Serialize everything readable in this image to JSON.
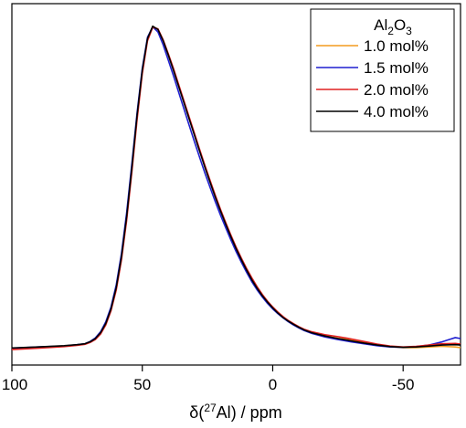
{
  "chart_data": {
    "type": "line",
    "title": "",
    "xlabel": {
      "prefix": "δ(",
      "sup": "27",
      "element": "Al",
      "suffix": ") / ppm"
    },
    "ylabel": "",
    "xlim": [
      100,
      -72
    ],
    "x_reversed": true,
    "ylim": [
      -0.05,
      1.07
    ],
    "x_ticks": [
      100,
      50,
      0,
      -50
    ],
    "x_tick_labels": [
      "100",
      "50",
      "0",
      "-50"
    ],
    "y_ticks_shown": false,
    "grid": false,
    "legend": {
      "position": "top-right",
      "title": {
        "pre": "Al",
        "sub1": "2",
        "mid": "O",
        "sub2": "3"
      }
    },
    "series": [
      {
        "name": "1.0 mol%",
        "color": "#f39c1f",
        "x": [
          100,
          90,
          80,
          75,
          72,
          70,
          68,
          66,
          64,
          62,
          60,
          58,
          56,
          54,
          52,
          50,
          48,
          46,
          44,
          42,
          40,
          38,
          36,
          34,
          32,
          30,
          28,
          26,
          24,
          22,
          20,
          18,
          16,
          14,
          12,
          10,
          8,
          6,
          4,
          2,
          0,
          -2,
          -4,
          -6,
          -8,
          -10,
          -12,
          -15,
          -20,
          -25,
          -30,
          -35,
          -40,
          -45,
          -50,
          -55,
          -60,
          -65,
          -70,
          -72
        ],
        "y": [
          0.0,
          0.004,
          0.008,
          0.012,
          0.015,
          0.022,
          0.032,
          0.05,
          0.08,
          0.125,
          0.19,
          0.285,
          0.41,
          0.56,
          0.72,
          0.86,
          0.96,
          1.0,
          0.99,
          0.955,
          0.91,
          0.865,
          0.815,
          0.765,
          0.715,
          0.665,
          0.615,
          0.565,
          0.52,
          0.473,
          0.43,
          0.39,
          0.35,
          0.312,
          0.277,
          0.245,
          0.215,
          0.188,
          0.165,
          0.145,
          0.127,
          0.111,
          0.097,
          0.085,
          0.075,
          0.066,
          0.058,
          0.05,
          0.04,
          0.033,
          0.027,
          0.02,
          0.013,
          0.007,
          0.004,
          0.004,
          0.006,
          0.008,
          0.006,
          0.004
        ]
      },
      {
        "name": "1.5 mol%",
        "color": "#1f1fcf",
        "x": [
          100,
          90,
          80,
          75,
          72,
          70,
          68,
          66,
          64,
          62,
          60,
          58,
          56,
          54,
          52,
          50,
          48,
          46,
          44,
          42,
          40,
          38,
          36,
          34,
          32,
          30,
          28,
          26,
          24,
          22,
          20,
          18,
          16,
          14,
          12,
          10,
          8,
          6,
          4,
          2,
          0,
          -2,
          -4,
          -6,
          -8,
          -10,
          -12,
          -15,
          -20,
          -25,
          -30,
          -35,
          -40,
          -45,
          -50,
          -55,
          -60,
          -65,
          -68,
          -70,
          -72
        ],
        "y": [
          0.002,
          0.006,
          0.009,
          0.013,
          0.016,
          0.023,
          0.034,
          0.053,
          0.084,
          0.13,
          0.198,
          0.295,
          0.422,
          0.574,
          0.732,
          0.87,
          0.966,
          0.998,
          0.982,
          0.942,
          0.894,
          0.845,
          0.794,
          0.743,
          0.692,
          0.642,
          0.593,
          0.545,
          0.5,
          0.456,
          0.414,
          0.375,
          0.337,
          0.301,
          0.268,
          0.237,
          0.208,
          0.183,
          0.161,
          0.141,
          0.124,
          0.109,
          0.096,
          0.084,
          0.074,
          0.065,
          0.057,
          0.048,
          0.037,
          0.029,
          0.022,
          0.016,
          0.01,
          0.006,
          0.005,
          0.007,
          0.012,
          0.022,
          0.03,
          0.035,
          0.032
        ]
      },
      {
        "name": "2.0 mol%",
        "color": "#e02020",
        "x": [
          100,
          90,
          80,
          75,
          72,
          70,
          68,
          66,
          64,
          62,
          60,
          58,
          56,
          54,
          52,
          50,
          48,
          46,
          44,
          42,
          40,
          38,
          36,
          34,
          32,
          30,
          28,
          26,
          24,
          22,
          20,
          18,
          16,
          14,
          12,
          10,
          8,
          6,
          4,
          2,
          0,
          -2,
          -4,
          -6,
          -8,
          -10,
          -12,
          -15,
          -20,
          -25,
          -30,
          -35,
          -40,
          -45,
          -50,
          -55,
          -60,
          -65,
          -70,
          -72
        ],
        "y": [
          -0.002,
          0.002,
          0.007,
          0.011,
          0.014,
          0.02,
          0.029,
          0.046,
          0.074,
          0.118,
          0.182,
          0.275,
          0.398,
          0.548,
          0.71,
          0.853,
          0.955,
          0.997,
          0.992,
          0.958,
          0.914,
          0.868,
          0.818,
          0.768,
          0.718,
          0.668,
          0.618,
          0.569,
          0.522,
          0.476,
          0.432,
          0.391,
          0.352,
          0.315,
          0.281,
          0.249,
          0.22,
          0.193,
          0.169,
          0.148,
          0.13,
          0.114,
          0.1,
          0.088,
          0.078,
          0.069,
          0.061,
          0.053,
          0.044,
          0.038,
          0.031,
          0.023,
          0.015,
          0.009,
          0.006,
          0.008,
          0.012,
          0.016,
          0.017,
          0.015
        ]
      },
      {
        "name": "4.0 mol%",
        "color": "#000000",
        "x": [
          100,
          90,
          80,
          75,
          72,
          70,
          68,
          66,
          64,
          62,
          60,
          58,
          56,
          54,
          52,
          50,
          48,
          46,
          44,
          42,
          40,
          38,
          36,
          34,
          32,
          30,
          28,
          26,
          24,
          22,
          20,
          18,
          16,
          14,
          12,
          10,
          8,
          6,
          4,
          2,
          0,
          -2,
          -4,
          -6,
          -8,
          -10,
          -12,
          -15,
          -20,
          -25,
          -30,
          -35,
          -40,
          -45,
          -50,
          -55,
          -60,
          -65,
          -70,
          -72
        ],
        "y": [
          0.003,
          0.006,
          0.01,
          0.013,
          0.016,
          0.022,
          0.032,
          0.05,
          0.079,
          0.124,
          0.19,
          0.285,
          0.41,
          0.562,
          0.724,
          0.864,
          0.962,
          1.0,
          0.99,
          0.955,
          0.91,
          0.862,
          0.812,
          0.762,
          0.712,
          0.662,
          0.612,
          0.563,
          0.516,
          0.47,
          0.427,
          0.386,
          0.347,
          0.31,
          0.276,
          0.244,
          0.214,
          0.188,
          0.165,
          0.145,
          0.127,
          0.111,
          0.097,
          0.086,
          0.076,
          0.067,
          0.059,
          0.05,
          0.04,
          0.032,
          0.025,
          0.018,
          0.012,
          0.007,
          0.005,
          0.006,
          0.009,
          0.012,
          0.013,
          0.012
        ]
      }
    ]
  }
}
